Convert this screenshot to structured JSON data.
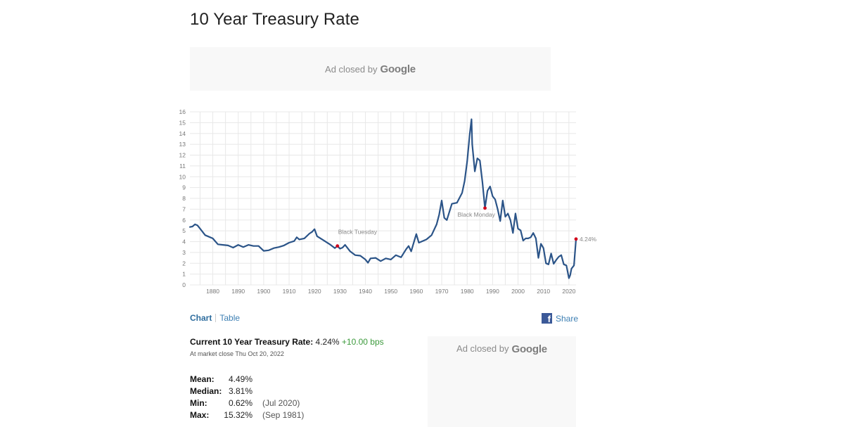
{
  "page": {
    "title": "10 Year Treasury Rate"
  },
  "ads": {
    "top": {
      "text": "Ad closed by",
      "brand": "Google"
    },
    "side": {
      "text": "Ad closed by",
      "brand": "Google"
    }
  },
  "tabs": {
    "chart": "Chart",
    "table": "Table"
  },
  "share": {
    "label": "Share",
    "icon": "facebook-icon"
  },
  "current": {
    "label": "Current 10 Year Treasury Rate:",
    "value": "4.24%",
    "change": "+10.00 bps",
    "asof": "At market close Thu Oct 20, 2022"
  },
  "stats": [
    {
      "label": "Mean:",
      "value": "4.49%",
      "date": ""
    },
    {
      "label": "Median:",
      "value": "3.81%",
      "date": ""
    },
    {
      "label": "Min:",
      "value": "0.62%",
      "date": "(Jul 2020)"
    },
    {
      "label": "Max:",
      "value": "15.32%",
      "date": "(Sep 1981)"
    }
  ],
  "colors": {
    "line": "#2b5488",
    "marker": "#d0021b",
    "grid": "#e8e8e8",
    "tick": "#777777",
    "link": "#3d7fb3",
    "positive": "#3c9a3c"
  },
  "chart_data": {
    "type": "line",
    "title": "",
    "xlabel": "",
    "ylabel": "",
    "xlim": [
      1871,
      2022.8
    ],
    "ylim": [
      0,
      16
    ],
    "yticks": [
      0,
      1,
      2,
      3,
      4,
      5,
      6,
      7,
      8,
      9,
      10,
      11,
      12,
      13,
      14,
      15,
      16
    ],
    "xticks": [
      1880,
      1890,
      1900,
      1910,
      1920,
      1930,
      1940,
      1950,
      1960,
      1970,
      1980,
      1990,
      2000,
      2010,
      2020
    ],
    "grid": true,
    "series": [
      {
        "x": [
          1871,
          1872,
          1873,
          1874,
          1875,
          1876,
          1877,
          1878,
          1880,
          1882,
          1884,
          1886,
          1888,
          1890,
          1892,
          1894,
          1896,
          1898,
          1900,
          1902,
          1904,
          1906,
          1908,
          1910,
          1912,
          1913,
          1914,
          1916,
          1918,
          1919,
          1920,
          1921,
          1922,
          1924,
          1926,
          1928,
          1929,
          1930,
          1931,
          1932,
          1934,
          1936,
          1938,
          1940,
          1941,
          1942,
          1944,
          1946,
          1948,
          1950,
          1952,
          1954,
          1956,
          1957,
          1958,
          1960,
          1961,
          1962,
          1964,
          1966,
          1968,
          1969,
          1970,
          1971,
          1972,
          1974,
          1976,
          1978,
          1979,
          1980,
          1981,
          1981.7,
          1982,
          1983,
          1984,
          1985,
          1986,
          1987,
          1988,
          1989,
          1990,
          1991,
          1992,
          1993,
          1994,
          1995,
          1996,
          1997,
          1998,
          1999,
          2000,
          2001,
          2002,
          2003,
          2004,
          2005,
          2006,
          2007,
          2008,
          2009,
          2010,
          2011,
          2012,
          2013,
          2014,
          2015,
          2016,
          2017,
          2018,
          2019,
          2020,
          2020.5,
          2021,
          2022,
          2022.8
        ],
        "y": [
          5.35,
          5.4,
          5.6,
          5.5,
          5.2,
          4.9,
          4.6,
          4.5,
          4.3,
          3.75,
          3.7,
          3.65,
          3.45,
          3.7,
          3.5,
          3.7,
          3.6,
          3.6,
          3.15,
          3.2,
          3.4,
          3.5,
          3.65,
          3.9,
          4.05,
          4.4,
          4.2,
          4.3,
          4.75,
          4.9,
          5.15,
          4.5,
          4.35,
          4.05,
          3.75,
          3.4,
          3.6,
          3.35,
          3.45,
          3.7,
          3.1,
          2.75,
          2.7,
          2.35,
          2.05,
          2.45,
          2.5,
          2.2,
          2.45,
          2.35,
          2.75,
          2.55,
          3.3,
          3.6,
          3.1,
          4.7,
          3.9,
          4.0,
          4.2,
          4.6,
          5.6,
          6.5,
          7.8,
          6.2,
          6.0,
          7.5,
          7.6,
          8.5,
          9.6,
          11.4,
          13.9,
          15.32,
          13.0,
          10.5,
          11.7,
          11.5,
          9.5,
          7.1,
          8.7,
          9.1,
          8.2,
          7.9,
          7.0,
          5.9,
          7.8,
          6.3,
          6.6,
          6.0,
          4.8,
          6.6,
          5.2,
          5.05,
          4.1,
          4.3,
          4.3,
          4.4,
          4.8,
          4.3,
          2.5,
          3.8,
          3.4,
          2.0,
          1.9,
          2.9,
          1.95,
          2.3,
          2.6,
          2.75,
          1.9,
          1.8,
          0.62,
          0.9,
          1.5,
          1.8,
          4.24
        ]
      }
    ],
    "annotations": [
      {
        "label": "Black Tuesday",
        "x": 1929,
        "y": 3.6
      },
      {
        "label": "Black Monday",
        "x": 1987,
        "y": 7.1
      },
      {
        "label": "4.24%",
        "x": 2022.8,
        "y": 4.24
      }
    ]
  }
}
